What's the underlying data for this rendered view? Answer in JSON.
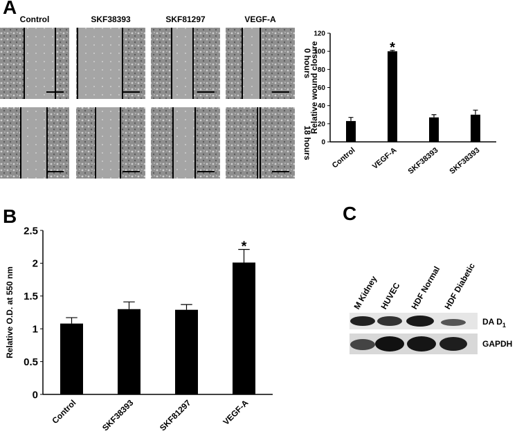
{
  "panels": {
    "a": "A",
    "b": "B",
    "c": "C"
  },
  "micrographs": {
    "columns": [
      "Control",
      "SKF38393",
      "SKF81297",
      "VEGF-A"
    ],
    "rows": [
      "0 hours",
      "18 hours"
    ]
  },
  "blot": {
    "lanes": [
      "M Kidney",
      "HUVEC",
      "HDF Normal",
      "HDF Diabetic"
    ],
    "bands": [
      {
        "text": "DA D",
        "subscript": "1"
      },
      {
        "text": "GAPDH"
      }
    ]
  },
  "chart_data": [
    {
      "type": "bar",
      "y_label": "Relative wound closure",
      "categories": [
        "Control",
        "VEGF-A",
        "SKF38393",
        "SKF38393"
      ],
      "values": [
        23,
        100,
        27,
        30
      ],
      "errors": [
        4,
        1,
        3,
        5
      ],
      "significance_labels": [
        null,
        "*",
        null,
        null
      ],
      "color": "#000000",
      "ylim": [
        0,
        120
      ],
      "yticks": [
        0,
        20,
        40,
        60,
        80,
        100,
        120
      ],
      "grid": false
    },
    {
      "type": "bar",
      "y_label": "Relative O.D. at  550 nm",
      "categories": [
        "Control",
        "SKF38393",
        "SKF81297",
        "VEGF-A"
      ],
      "values": [
        1.08,
        1.3,
        1.29,
        2.01
      ],
      "errors": [
        0.09,
        0.11,
        0.08,
        0.2
      ],
      "significance_labels": [
        null,
        null,
        null,
        "*"
      ],
      "color": "#000000",
      "ylim": [
        0,
        2.5
      ],
      "yticks": [
        0,
        0.5,
        1,
        1.5,
        2,
        2.5
      ],
      "grid": false
    }
  ]
}
